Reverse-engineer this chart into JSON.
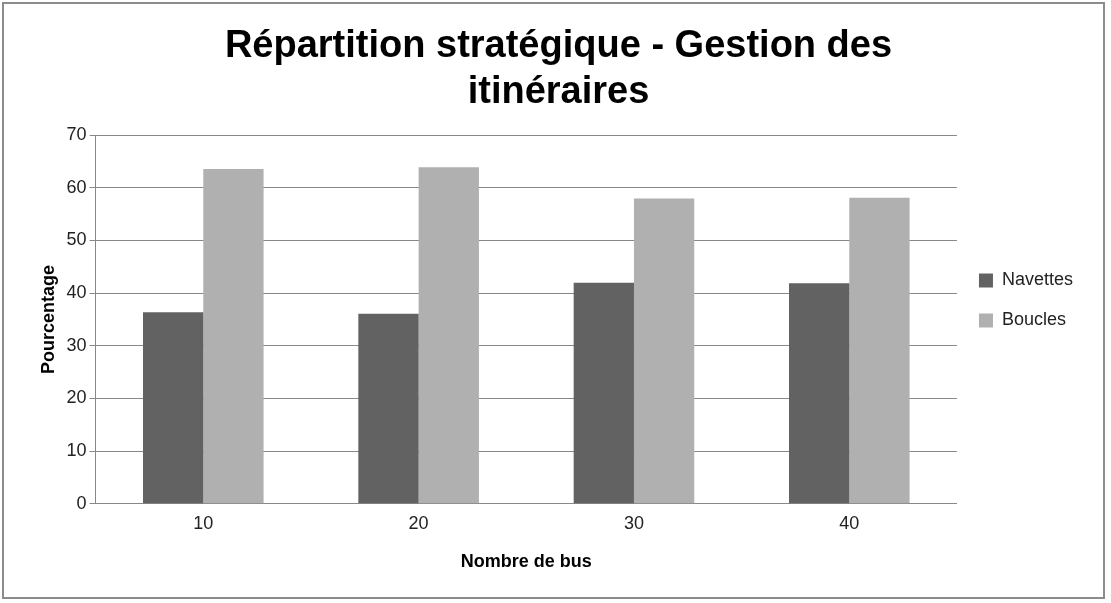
{
  "chart_data": {
    "type": "bar",
    "title": "Répartition stratégique - Gestion des itinéraires",
    "xlabel": "Nombre de bus",
    "ylabel": "Pourcentage",
    "categories": [
      "10",
      "20",
      "30",
      "40"
    ],
    "series": [
      {
        "name": "Navettes",
        "color": "#626262",
        "values": [
          36.4,
          36.1,
          42,
          41.9
        ]
      },
      {
        "name": "Boucles",
        "color": "#b0b0b0",
        "values": [
          63.6,
          63.9,
          58,
          58.1
        ]
      }
    ],
    "ylim": [
      0,
      70
    ],
    "yticks": [
      0,
      10,
      20,
      30,
      40,
      50,
      60,
      70
    ],
    "grid": "y",
    "legend": "right"
  }
}
